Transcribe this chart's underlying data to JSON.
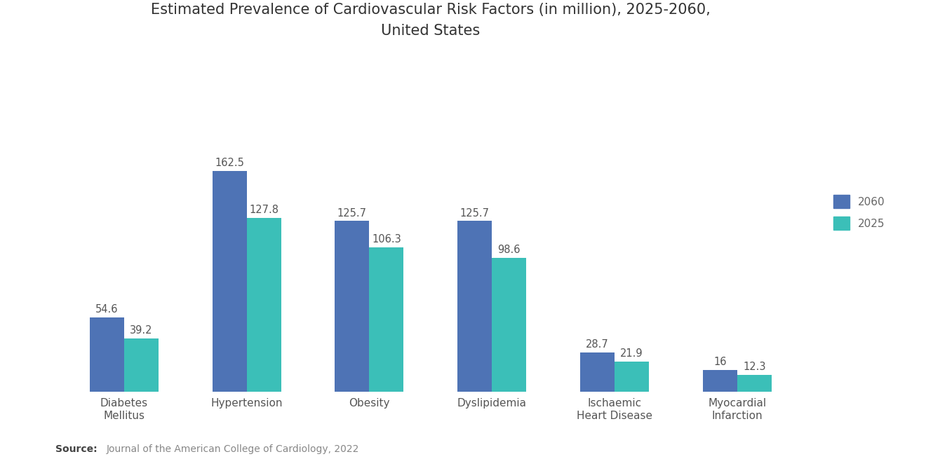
{
  "title": "Estimated Prevalence of Cardiovascular Risk Factors (in million), 2025-2060,\nUnited States",
  "categories": [
    "Diabetes\nMellitus",
    "Hypertension",
    "Obesity",
    "Dyslipidemia",
    "Ischaemic\nHeart Disease",
    "Myocardial\nInfarction"
  ],
  "values_2060": [
    54.6,
    162.5,
    125.7,
    125.7,
    28.7,
    16.0
  ],
  "values_2025": [
    39.2,
    127.8,
    106.3,
    98.6,
    21.9,
    12.3
  ],
  "color_2060": "#4E73B5",
  "color_2025": "#3BBFB8",
  "background_color": "#ffffff",
  "title_fontsize": 15,
  "label_fontsize": 11,
  "bar_label_fontsize": 10.5,
  "legend_labels": [
    "2060",
    "2025"
  ],
  "source_bold": "Source:",
  "source_normal": "  Journal of the American College of Cardiology, 2022",
  "bar_width": 0.28,
  "ylim": [
    0,
    220
  ],
  "figsize": [
    13.2,
    6.65
  ],
  "dpi": 100
}
